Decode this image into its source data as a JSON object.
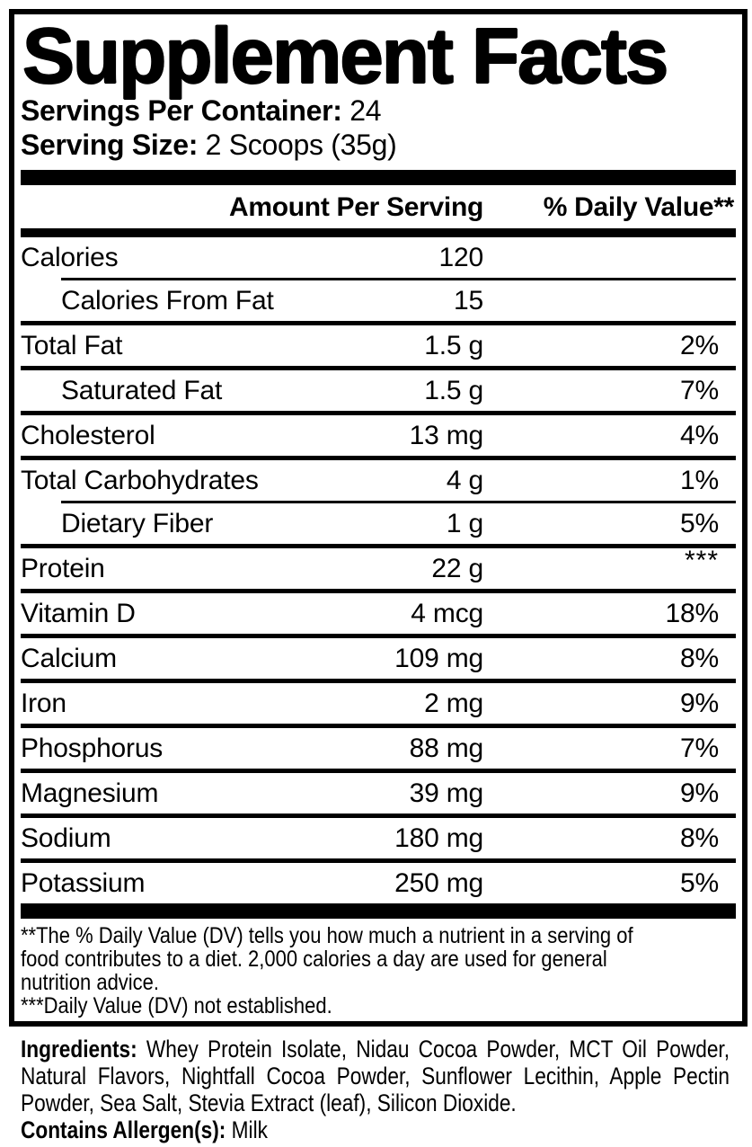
{
  "panel": {
    "title": "Supplement Facts",
    "servings_per_container_label": "Servings Per Container:",
    "servings_per_container_value": "24",
    "serving_size_label": "Serving Size:",
    "serving_size_value": "2 Scoops (35g)"
  },
  "table": {
    "amount_header": "Amount Per Serving",
    "dv_header": "% Daily Value**",
    "rows": [
      {
        "label": "Calories",
        "amount": "120",
        "dv": "",
        "indent": false,
        "separator_after": "indented"
      },
      {
        "label": "Calories From Fat",
        "amount": "15",
        "dv": "",
        "indent": true,
        "separator_after": "full"
      },
      {
        "label": "Total Fat",
        "amount": "1.5 g",
        "dv": "2%",
        "indent": false,
        "separator_after": "full"
      },
      {
        "label": "Saturated Fat",
        "amount": "1.5 g",
        "dv": "7%",
        "indent": true,
        "separator_after": "full"
      },
      {
        "label": "Cholesterol",
        "amount": "13 mg",
        "dv": "4%",
        "indent": false,
        "separator_after": "full"
      },
      {
        "label": "Total Carbohydrates",
        "amount": "4 g",
        "dv": "1%",
        "indent": false,
        "separator_after": "indented"
      },
      {
        "label": "Dietary Fiber",
        "amount": "1 g",
        "dv": "5%",
        "indent": true,
        "separator_after": "full"
      },
      {
        "label": "Protein",
        "amount": "22 g",
        "dv": "***",
        "indent": false,
        "separator_after": "full"
      },
      {
        "label": "Vitamin D",
        "amount": "4 mcg",
        "dv": "18%",
        "indent": false,
        "separator_after": "full"
      },
      {
        "label": "Calcium",
        "amount": "109 mg",
        "dv": "8%",
        "indent": false,
        "separator_after": "full"
      },
      {
        "label": "Iron",
        "amount": "2 mg",
        "dv": "9%",
        "indent": false,
        "separator_after": "full"
      },
      {
        "label": "Phosphorus",
        "amount": "88 mg",
        "dv": "7%",
        "indent": false,
        "separator_after": "full"
      },
      {
        "label": "Magnesium",
        "amount": "39 mg",
        "dv": "9%",
        "indent": false,
        "separator_after": "full"
      },
      {
        "label": "Sodium",
        "amount": "180 mg",
        "dv": "8%",
        "indent": false,
        "separator_after": "full"
      },
      {
        "label": "Potassium",
        "amount": "250 mg",
        "dv": "5%",
        "indent": false,
        "separator_after": "none"
      }
    ]
  },
  "footnotes": {
    "lines": [
      "**The % Daily Value (DV) tells you how much a nutrient in a serving of",
      "food contributes to a diet. 2,000 calories a day are used for general",
      "nutrition advice.",
      "***Daily Value (DV) not established."
    ]
  },
  "ingredients": {
    "label": "Ingredients:",
    "text": "Whey Protein Isolate, Nidau Cocoa Powder, MCT Oil Powder, Natural Flavors, Nightfall Cocoa Powder, Sunflower Lecithin, Apple Pectin Powder, Sea Salt, Stevia Extract (leaf), Silicon Dioxide."
  },
  "allergens": {
    "label": "Contains Allergen(s):",
    "value": "Milk"
  },
  "colors": {
    "ink": "#000000",
    "paper": "#ffffff"
  }
}
